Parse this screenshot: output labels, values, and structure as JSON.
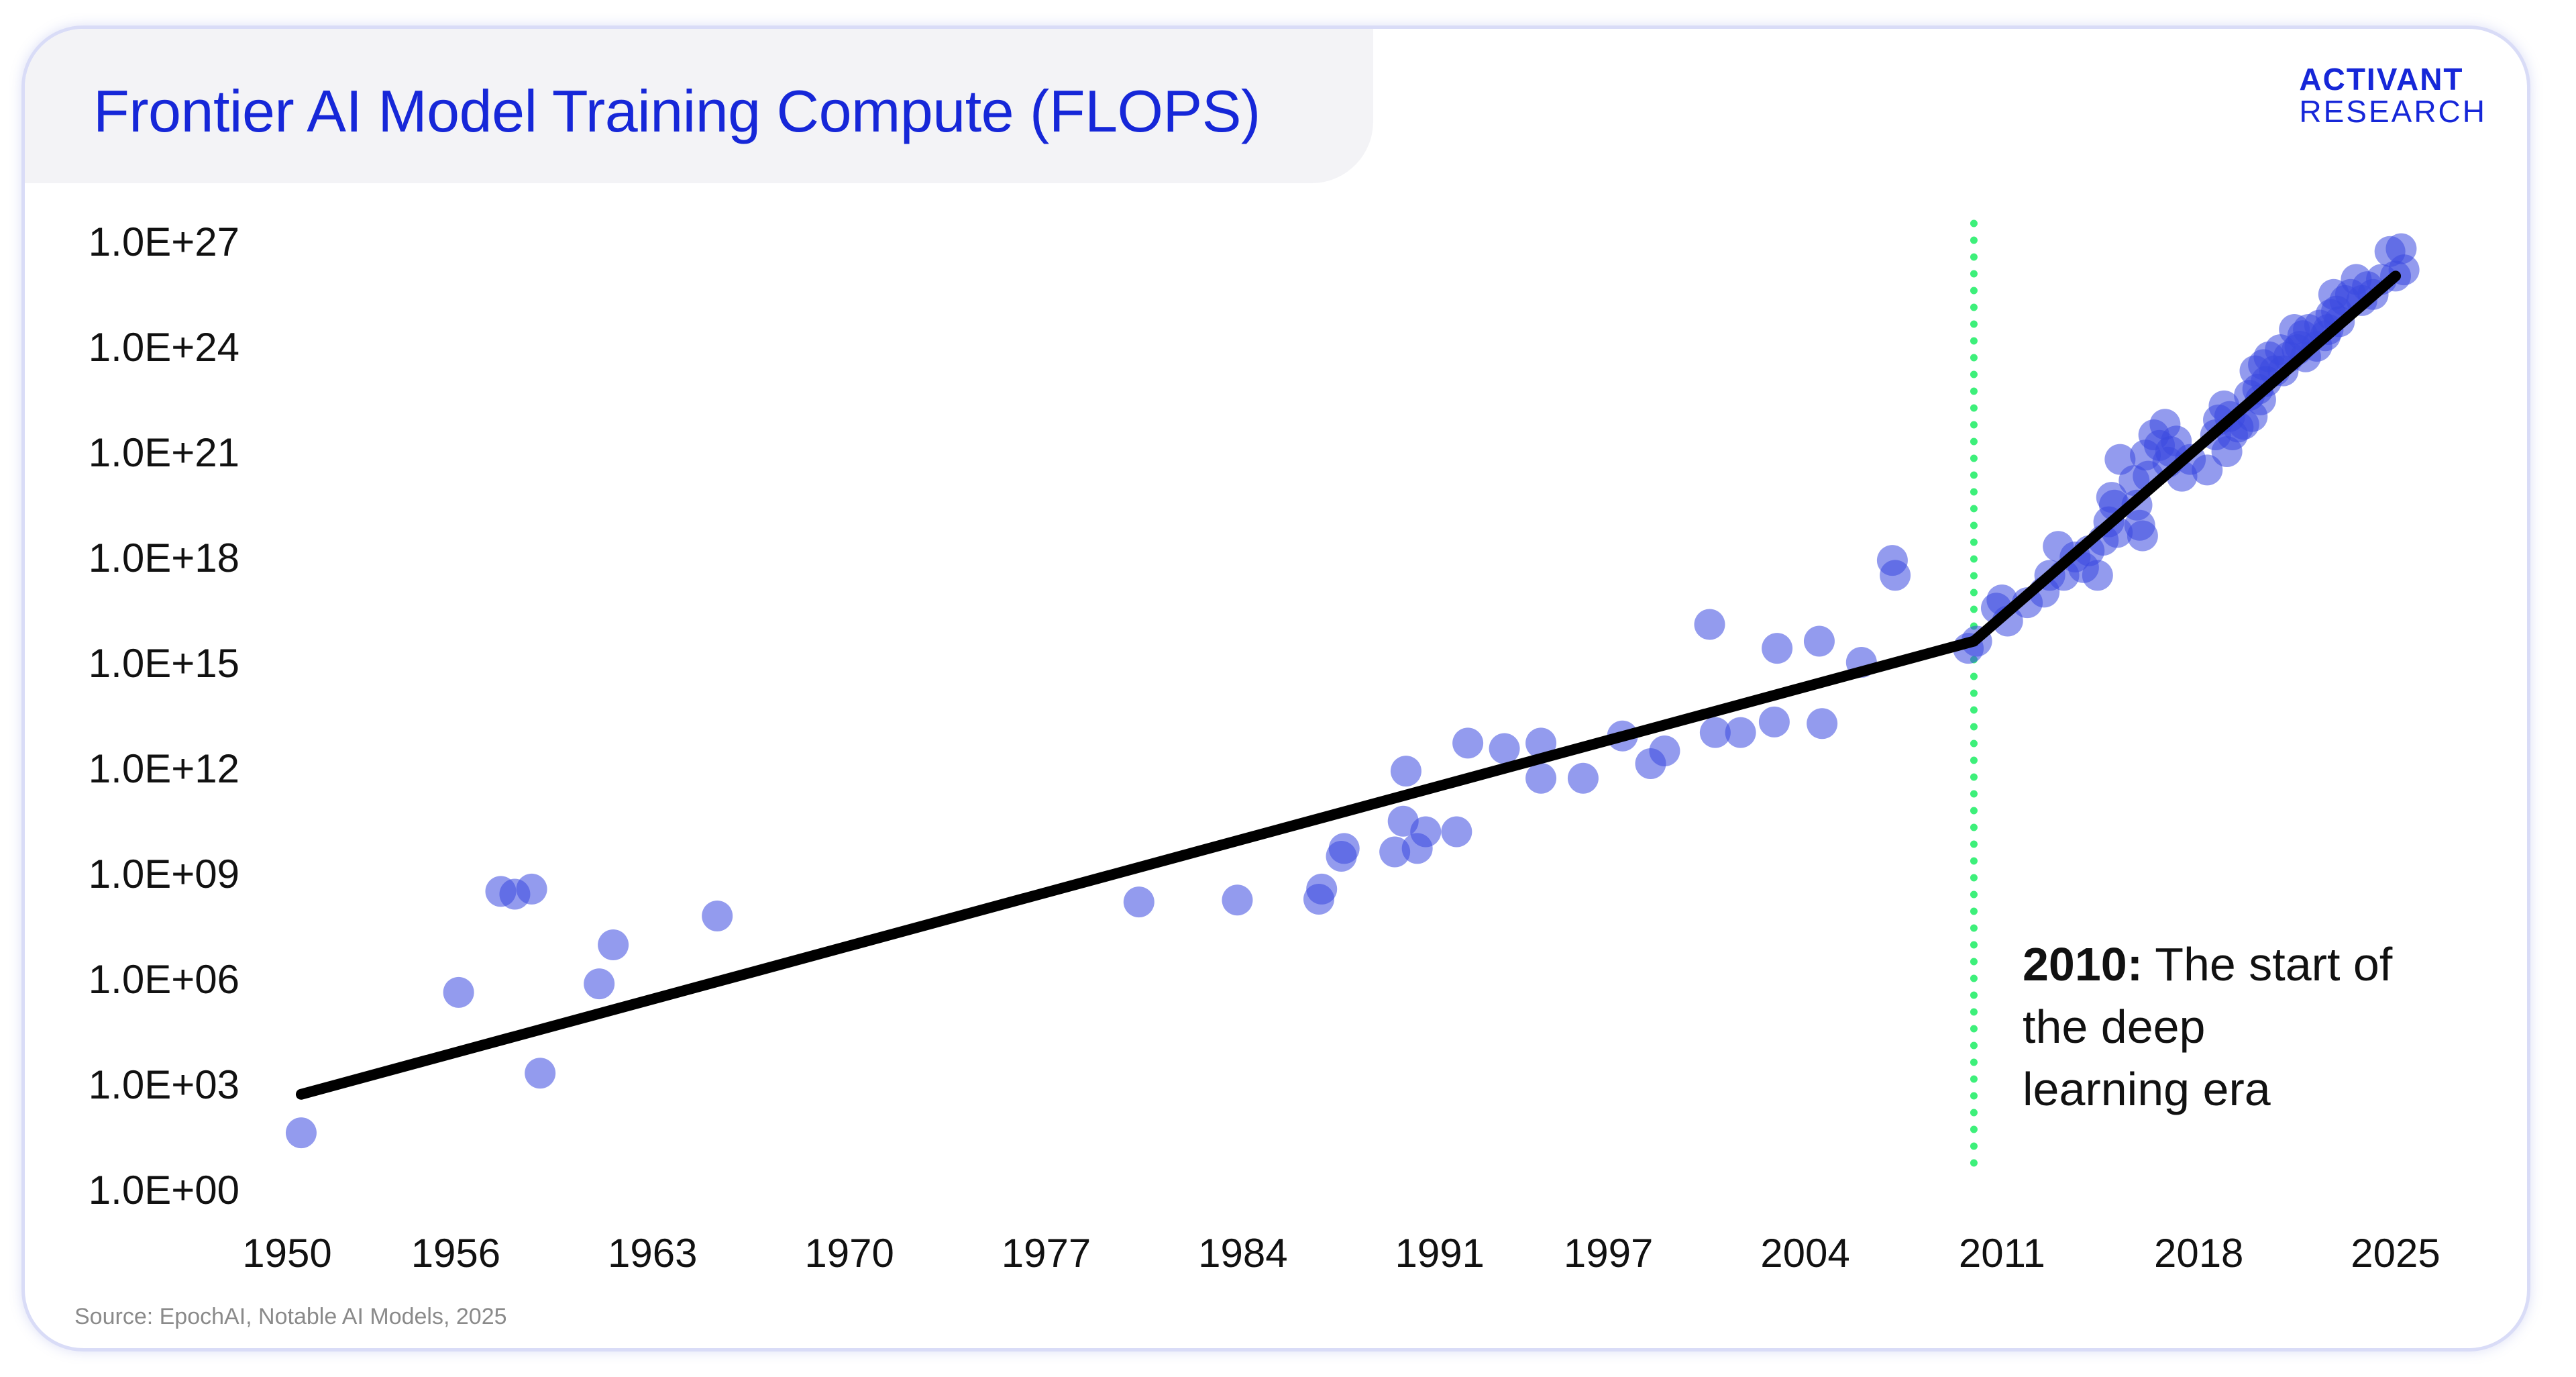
{
  "title": "Frontier AI Model Training Compute (FLOPS)",
  "logo": {
    "line1": "ACTIVANT",
    "line2": "RESEARCH"
  },
  "source": "Source: EpochAI, Notable AI Models, 2025",
  "colors": {
    "accent": "#1627d8",
    "points": "#3b48e0",
    "trend": "#000000",
    "marker": "#3df07a"
  },
  "chart_data": {
    "type": "scatter",
    "title": "Frontier AI Model Training Compute (FLOPS)",
    "xlabel": "",
    "ylabel": "",
    "yscale": "log",
    "xlim": [
      1950,
      2025.5
    ],
    "ylim": [
      1,
      1e+27
    ],
    "x_ticks": [
      "1950",
      "1956",
      "1963",
      "1970",
      "1977",
      "1984",
      "1991",
      "1997",
      "2004",
      "2011",
      "2018",
      "2025"
    ],
    "y_ticks": [
      "1.0E+00",
      "1.0E+03",
      "1.0E+06",
      "1.0E+09",
      "1.0E+12",
      "1.0E+15",
      "1.0E+18",
      "1.0E+21",
      "1.0E+24",
      "1.0E+27"
    ],
    "grid": false,
    "legend": "none",
    "annotation": {
      "x": 2010,
      "bold": "2010:",
      "text_lines": [
        "The start of",
        "the deep",
        "learning era"
      ]
    },
    "trend_lines": [
      {
        "points": [
          [
            1950.5,
            500
          ],
          [
            2010,
            4000000000000000.0
          ]
        ]
      },
      {
        "points": [
          [
            2010,
            4000000000000000.0
          ],
          [
            2025,
            1e+26
          ]
        ]
      }
    ],
    "points": [
      [
        1950.5,
        40
      ],
      [
        1956.1,
        400000.0
      ],
      [
        1957.6,
        300000000.0
      ],
      [
        1958.1,
        250000000.0
      ],
      [
        1958.7,
        350000000.0
      ],
      [
        1959,
        2000.0
      ],
      [
        1961.1,
        700000.0
      ],
      [
        1961.6,
        9000000.0
      ],
      [
        1965.3,
        60000000.0
      ],
      [
        1980.3,
        150000000.0
      ],
      [
        1983.8,
        170000000.0
      ],
      [
        1986.7,
        180000000.0
      ],
      [
        1986.8,
        350000000.0
      ],
      [
        1987.5,
        3000000000.0
      ],
      [
        1987.6,
        5000000000.0
      ],
      [
        1989.4,
        4000000000.0
      ],
      [
        1989.7,
        30000000000.0
      ],
      [
        1989.8,
        800000000000.0
      ],
      [
        1990.2,
        5000000000.0
      ],
      [
        1990.5,
        15000000000.0
      ],
      [
        1991.6,
        15000000000.0
      ],
      [
        1992,
        5000000000000.0
      ],
      [
        1993.3,
        3500000000000.0
      ],
      [
        1994.6,
        5000000000000.0
      ],
      [
        1994.6,
        500000000000.0
      ],
      [
        1996.1,
        500000000000.0
      ],
      [
        1997.5,
        8000000000000.0
      ],
      [
        1998.5,
        1300000000000.0
      ],
      [
        1999,
        3000000000000.0
      ],
      [
        2000.6,
        1.2e+16
      ],
      [
        2000.8,
        10000000000000.0
      ],
      [
        2001.7,
        10000000000000.0
      ],
      [
        2002.9,
        20000000000000.0
      ],
      [
        2003,
        2500000000000000.0
      ],
      [
        2004.5,
        4000000000000000.0
      ],
      [
        2004.6,
        18000000000000.0
      ],
      [
        2006,
        1000000000000000.0
      ],
      [
        2007.1,
        8e+17
      ],
      [
        2007.2,
        3e+17
      ],
      [
        2009.8,
        2500000000000000.0
      ],
      [
        2010.1,
        4000000000000000.0
      ],
      [
        2010.8,
        3.5e+16
      ],
      [
        2011,
        6e+16
      ],
      [
        2011.2,
        1.5e+16
      ],
      [
        2011.9,
        5e+16
      ],
      [
        2012.5,
        1e+17
      ],
      [
        2012.7,
        3e+17
      ],
      [
        2013,
        2e+18
      ],
      [
        2013.2,
        3e+17
      ],
      [
        2013.6,
        1e+18
      ],
      [
        2013.9,
        5e+17
      ],
      [
        2014.1,
        1.5e+18
      ],
      [
        2014.4,
        3e+17
      ],
      [
        2014.6,
        3e+18
      ],
      [
        2014.8,
        1e+19
      ],
      [
        2014.9,
        5e+19
      ],
      [
        2015,
        3e+19
      ],
      [
        2015.1,
        5e+18
      ],
      [
        2015.2,
        6e+20
      ],
      [
        2015.7,
        1.5e+20
      ],
      [
        2015.8,
        3e+19
      ],
      [
        2015.9,
        8e+18
      ],
      [
        2016,
        4e+18
      ],
      [
        2016.1,
        8e+20
      ],
      [
        2016.2,
        2e+20
      ],
      [
        2016.4,
        3e+21
      ],
      [
        2016.6,
        1.5e+21
      ],
      [
        2016.8,
        6e+21
      ],
      [
        2016.9,
        5e+20
      ],
      [
        2017,
        1e+21
      ],
      [
        2017.2,
        2e+21
      ],
      [
        2017.4,
        2e+20
      ],
      [
        2017.7,
        6e+20
      ],
      [
        2018.3,
        3e+20
      ],
      [
        2018.6,
        3e+21
      ],
      [
        2018.7,
        8e+21
      ],
      [
        2018.9,
        2e+22
      ],
      [
        2019,
        1e+21
      ],
      [
        2019.1,
        1e+22
      ],
      [
        2019.2,
        3e+21
      ],
      [
        2019.4,
        5e+21
      ],
      [
        2019.6,
        6e+21
      ],
      [
        2019.8,
        4e+22
      ],
      [
        2019.9,
        1e+22
      ],
      [
        2020,
        2e+23
      ],
      [
        2020.1,
        6e+22
      ],
      [
        2020.2,
        3e+22
      ],
      [
        2020.3,
        3e+23
      ],
      [
        2020.4,
        1e+23
      ],
      [
        2020.5,
        5e+23
      ],
      [
        2020.7,
        2e+23
      ],
      [
        2020.9,
        8e+23
      ],
      [
        2021,
        2e+23
      ],
      [
        2021.2,
        5e+23
      ],
      [
        2021.4,
        3e+24
      ],
      [
        2021.5,
        8e+23
      ],
      [
        2021.6,
        1e+24
      ],
      [
        2021.7,
        2e+24
      ],
      [
        2021.8,
        5e+23
      ],
      [
        2021.9,
        3e+24
      ],
      [
        2022.2,
        1e+24
      ],
      [
        2022.3,
        4e+24
      ],
      [
        2022.5,
        2e+24
      ],
      [
        2022.6,
        3e+24
      ],
      [
        2022.7,
        8e+24
      ],
      [
        2022.8,
        3e+25
      ],
      [
        2022.9,
        1e+25
      ],
      [
        2023,
        5e+24
      ],
      [
        2023.2,
        2e+25
      ],
      [
        2023.4,
        3e+25
      ],
      [
        2023.6,
        8e+25
      ],
      [
        2023.8,
        2e+25
      ],
      [
        2024,
        5e+25
      ],
      [
        2024.2,
        3e+25
      ],
      [
        2024.5,
        8e+25
      ],
      [
        2024.8,
        5e+26
      ],
      [
        2025,
        1e+26
      ],
      [
        2025.2,
        6e+26
      ],
      [
        2025.3,
        1.5e+26
      ]
    ]
  }
}
